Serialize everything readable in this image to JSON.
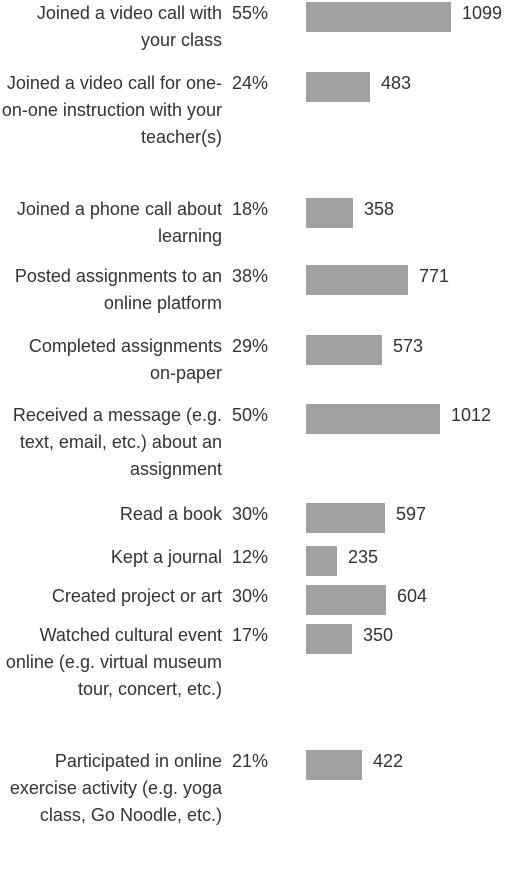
{
  "chart_data": {
    "type": "bar",
    "orientation": "horizontal",
    "title": "",
    "xlabel": "",
    "ylabel": "",
    "bar_color": "#a0a0a0",
    "xlim": [
      0,
      1099
    ],
    "categories": [
      "Joined a video call with your class",
      "Joined a video call for one-on-one instruction with your teacher(s)",
      "Joined a phone call about learning",
      "Posted assignments to an online platform",
      "Completed assignments on-paper",
      "Received a message (e.g. text, email, etc.) about an assignment",
      "Read a book",
      "Kept a journal",
      "Created project or art",
      "Watched cultural event online (e.g. virtual museum tour, concert, etc.)",
      "Participated in online exercise activity (e.g. yoga class, Go Noodle, etc.)"
    ],
    "percent_labels": [
      "55%",
      "24%",
      "18%",
      "38%",
      "29%",
      "50%",
      "30%",
      "12%",
      "30%",
      "17%",
      "21%"
    ],
    "values": [
      1099,
      483,
      358,
      771,
      573,
      1012,
      597,
      235,
      604,
      350,
      422
    ]
  }
}
